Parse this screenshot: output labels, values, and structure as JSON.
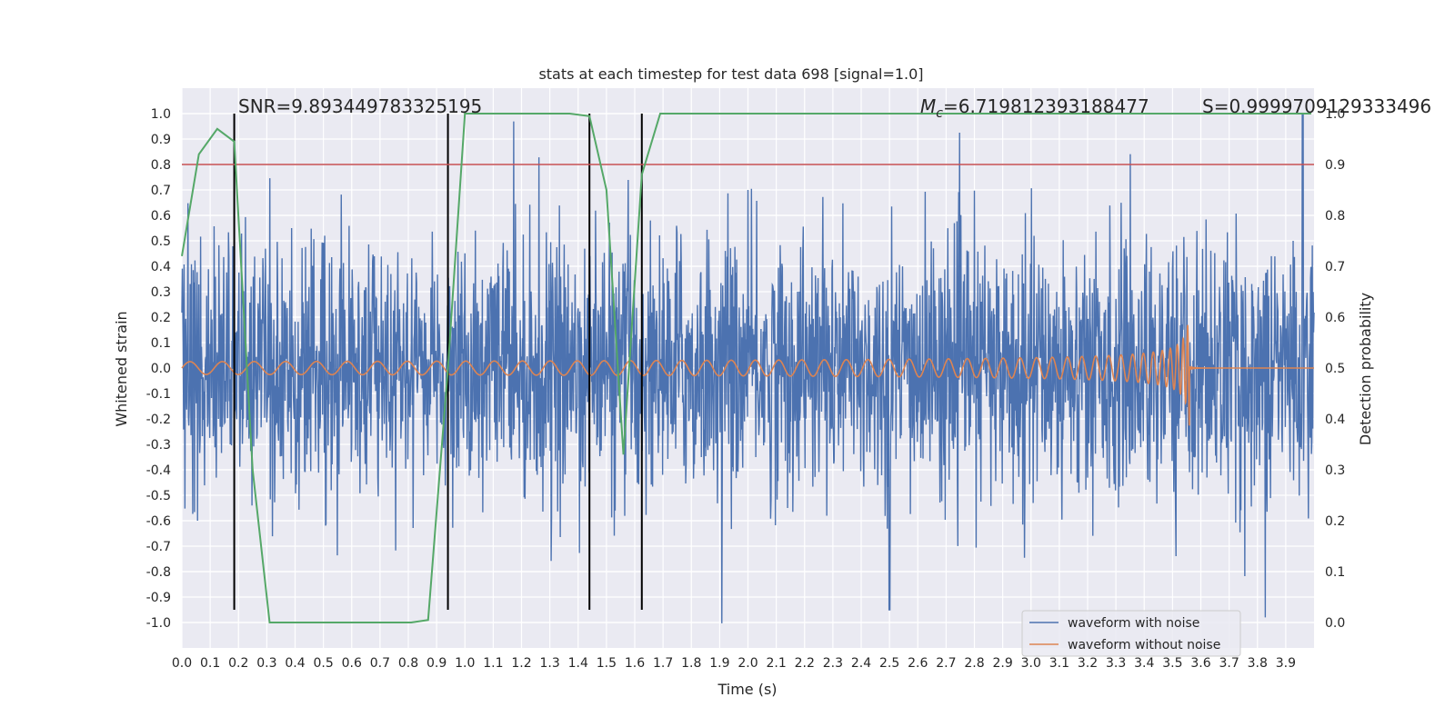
{
  "chart_data": {
    "type": "line",
    "title": "stats at each timestep for test data 698 [signal=1.0]",
    "xlabel": "Time (s)",
    "ylabel": "Whitened strain",
    "y2label": "Detection probability",
    "xlim": [
      0.0,
      4.0
    ],
    "ylim": [
      -1.1,
      1.1
    ],
    "y2lim": [
      -0.05,
      1.05
    ],
    "xticks": [
      "0.0",
      "0.1",
      "0.2",
      "0.3",
      "0.4",
      "0.5",
      "0.6",
      "0.7",
      "0.8",
      "0.9",
      "1.0",
      "1.1",
      "1.2",
      "1.3",
      "1.4",
      "1.5",
      "1.6",
      "1.7",
      "1.8",
      "1.9",
      "2.0",
      "2.1",
      "2.2",
      "2.3",
      "2.4",
      "2.5",
      "2.6",
      "2.7",
      "2.8",
      "2.9",
      "3.0",
      "3.1",
      "3.2",
      "3.3",
      "3.4",
      "3.5",
      "3.6",
      "3.7",
      "3.8",
      "3.9"
    ],
    "yticks": [
      "1.0",
      "0.9",
      "0.8",
      "0.7",
      "0.6",
      "0.5",
      "0.4",
      "0.3",
      "0.2",
      "0.1",
      "0.0",
      "-0.1",
      "-0.2",
      "-0.3",
      "-0.4",
      "-0.5",
      "-0.6",
      "-0.7",
      "-0.8",
      "-0.9",
      "-1.0"
    ],
    "y2ticks": [
      "1.0",
      "0.9",
      "0.8",
      "0.7",
      "0.6",
      "0.5",
      "0.4",
      "0.3",
      "0.2",
      "0.1",
      "0.0"
    ],
    "grid": true,
    "legend": "lower-right",
    "annotations": {
      "snr": "SNR=9.893449783325195",
      "mc_symbol": "M",
      "mc_sub": "c",
      "mc_value": "=6.719812393188477",
      "s": "S=0.9999709129333496"
    },
    "threshold": {
      "value": 0.9,
      "axis": "right",
      "color": "#c44e52"
    },
    "vlines_x": [
      0.185,
      0.94,
      1.44,
      1.625
    ],
    "series": [
      {
        "name": "waveform with noise",
        "color": "#4c72b0",
        "axis": "left",
        "description_points": {
          "noise_sigma": 0.25,
          "peak": [
            3.96,
            1.0
          ],
          "trough": [
            2.5,
            -0.95
          ]
        }
      },
      {
        "name": "waveform without noise",
        "color": "#dd8452",
        "axis": "left",
        "chirp_end": 3.56,
        "amplitude_start": 0.025,
        "amplitude_peak": 0.26
      },
      {
        "name": "",
        "color": "#55a868",
        "axis": "right",
        "x": [
          0.0,
          0.06,
          0.125,
          0.185,
          0.25,
          0.31,
          0.37,
          0.5,
          0.62,
          0.81,
          0.87,
          0.94,
          1.0,
          1.37,
          1.44,
          1.5,
          1.56,
          1.625,
          1.69,
          3.99
        ],
        "values": [
          0.72,
          0.92,
          0.97,
          0.945,
          0.3,
          0.0,
          0.0,
          0.0,
          0.0,
          0.0,
          0.005,
          0.5,
          1.0,
          1.0,
          0.995,
          0.85,
          0.33,
          0.88,
          1.0,
          1.0
        ]
      }
    ]
  }
}
